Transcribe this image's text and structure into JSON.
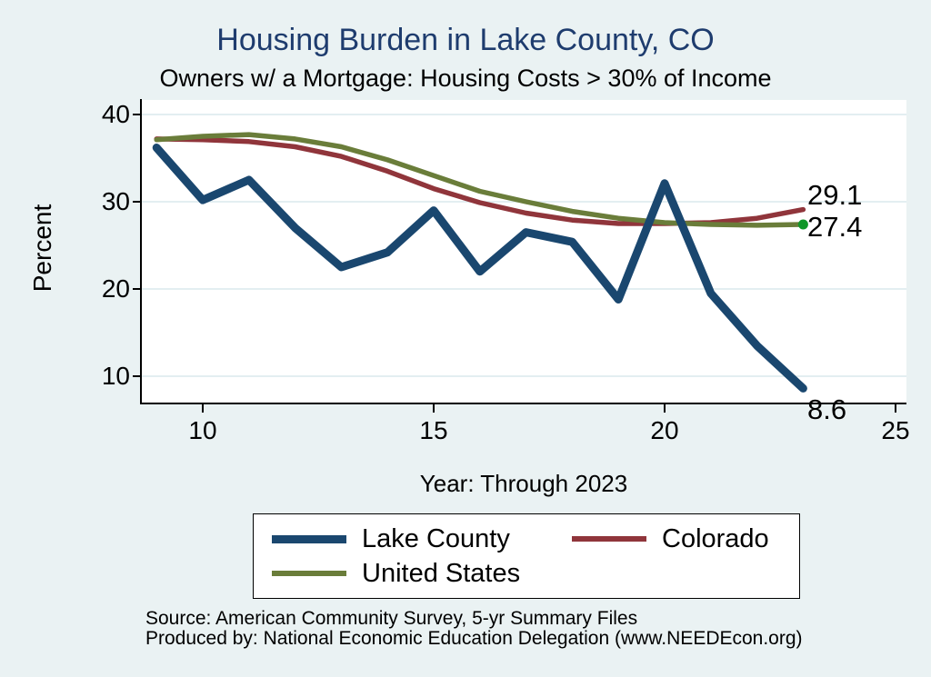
{
  "header": {
    "title": "Housing Burden in Lake County, CO",
    "subtitle": "Owners w/ a Mortgage: Housing Costs > 30% of Income"
  },
  "colors": {
    "background": "#eaf2f3",
    "plot_background": "#ffffff",
    "gridline": "#e3eef1",
    "axis": "#000000",
    "title_text": "#1e3c6e",
    "lake_county_line": "#1a476f",
    "colorado_line": "#90353b",
    "united_states_line": "#6a7d3a",
    "end_marker_green": "#0f9628"
  },
  "chart_data": {
    "type": "line",
    "title": "Housing Burden in Lake County, CO",
    "subtitle": "Owners w/ a Mortgage: Housing Costs > 30% of Income",
    "xlabel": "Year: Through 2023",
    "ylabel": "Percent",
    "grid": true,
    "legend_position": "bottom",
    "x": [
      2009,
      2010,
      2011,
      2012,
      2013,
      2014,
      2015,
      2016,
      2017,
      2018,
      2019,
      2020,
      2021,
      2022,
      2023
    ],
    "x_tick_labels": [
      "10",
      "15",
      "20",
      "25"
    ],
    "y_tick_labels": [
      "40",
      "30",
      "20",
      "10"
    ],
    "xlim": [
      2008.7,
      2025.2
    ],
    "ylim": [
      7,
      42
    ],
    "series": [
      {
        "name": "Lake County",
        "color": "#1a476f",
        "thickness": 9,
        "values": [
          36.2,
          30.2,
          32.5,
          27.0,
          22.5,
          24.2,
          29.0,
          22.0,
          26.5,
          25.4,
          18.8,
          32.1,
          19.5,
          13.5,
          8.6
        ],
        "end_label": "8.6"
      },
      {
        "name": "Colorado",
        "color": "#90353b",
        "thickness": 5.5,
        "values": [
          37.2,
          37.1,
          36.9,
          36.3,
          35.2,
          33.5,
          31.5,
          29.9,
          28.7,
          27.9,
          27.5,
          27.5,
          27.6,
          28.1,
          29.1
        ],
        "end_label": "29.1"
      },
      {
        "name": "United States",
        "color": "#6a7d3a",
        "thickness": 5.5,
        "values": [
          37.1,
          37.5,
          37.7,
          37.2,
          36.3,
          34.8,
          33.0,
          31.2,
          30.0,
          28.9,
          28.1,
          27.6,
          27.4,
          27.3,
          27.4
        ],
        "end_label": "27.4",
        "end_marker": true,
        "end_marker_color": "#0f9628"
      }
    ]
  },
  "footer": {
    "source": "Source: American Community Survey, 5-yr Summary Files",
    "produced": "Produced by: National Economic Education Delegation (www.NEEDEcon.org)"
  }
}
